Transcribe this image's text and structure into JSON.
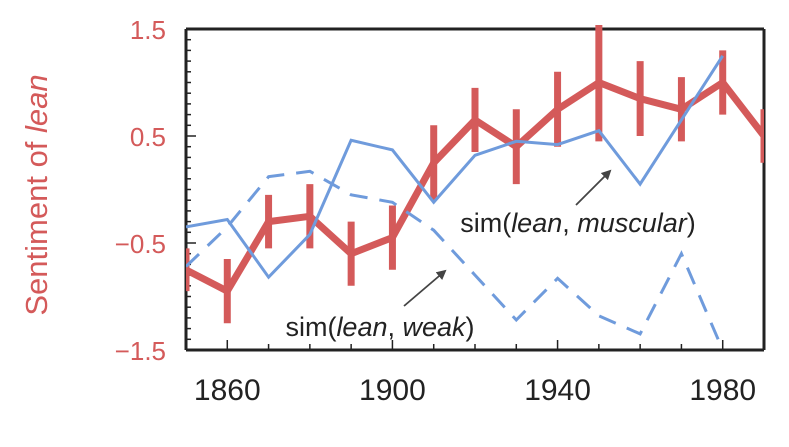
{
  "colors": {
    "sentiment": "#d45a5a",
    "similarity": "#6f9bdc",
    "axis": "#222222",
    "ylabel": "#d45a5a",
    "annotation_text": "#222222",
    "arrow": "#444444"
  },
  "chart_data": {
    "type": "line",
    "title": "",
    "xlabel": "",
    "ylabel_prefix": "Sentiment of ",
    "ylabel_word": "lean",
    "xlim": [
      1850,
      1990
    ],
    "ylim": [
      -1.5,
      1.5
    ],
    "xticks": [
      1860,
      1900,
      1940,
      1980
    ],
    "xtick_labels": [
      "1860",
      "1900",
      "1940",
      "1980"
    ],
    "yticks": [
      -1.5,
      -0.5,
      0.5,
      1.5
    ],
    "ytick_labels": [
      "−1.5",
      "−0.5",
      "0.5",
      "1.5"
    ],
    "grid": false,
    "series": [
      {
        "name": "Sentiment of lean",
        "style": "thick-solid-with-errorbars",
        "x": [
          1850,
          1860,
          1870,
          1880,
          1890,
          1900,
          1910,
          1920,
          1930,
          1940,
          1950,
          1960,
          1970,
          1980,
          1990
        ],
        "values": [
          -0.75,
          -0.95,
          -0.3,
          -0.25,
          -0.6,
          -0.45,
          0.25,
          0.65,
          0.4,
          0.75,
          1.0,
          0.85,
          0.75,
          1.0,
          0.5
        ],
        "error": [
          0.2,
          0.3,
          0.25,
          0.3,
          0.3,
          0.3,
          0.35,
          0.3,
          0.35,
          0.35,
          0.55,
          0.35,
          0.3,
          0.3,
          0.25
        ]
      },
      {
        "name": "sim(lean, muscular)",
        "style": "thin-solid",
        "x": [
          1850,
          1860,
          1870,
          1880,
          1890,
          1900,
          1910,
          1920,
          1930,
          1940,
          1950,
          1960,
          1970,
          1980
        ],
        "values": [
          -0.35,
          -0.28,
          -0.82,
          -0.42,
          0.46,
          0.37,
          -0.12,
          0.32,
          0.45,
          0.42,
          0.55,
          0.05,
          0.65,
          1.25
        ]
      },
      {
        "name": "sim(lean, weak)",
        "style": "dashed",
        "x": [
          1850,
          1860,
          1870,
          1880,
          1890,
          1900,
          1910,
          1920,
          1930,
          1940,
          1950,
          1960,
          1970,
          1980
        ],
        "values": [
          -0.72,
          -0.35,
          0.12,
          0.17,
          -0.05,
          -0.12,
          -0.38,
          -0.8,
          -1.22,
          -0.83,
          -1.18,
          -1.35,
          -0.6,
          -1.5
        ]
      }
    ],
    "annotations": [
      {
        "series": "sim(lean, muscular)",
        "pre": "sim(",
        "italic": "lean",
        "mid": ", ",
        "italic2": "muscular",
        "post": ")"
      },
      {
        "series": "sim(lean, weak)",
        "pre": "sim(",
        "italic": "lean",
        "mid": ", ",
        "italic2": "weak",
        "post": ")"
      }
    ]
  }
}
